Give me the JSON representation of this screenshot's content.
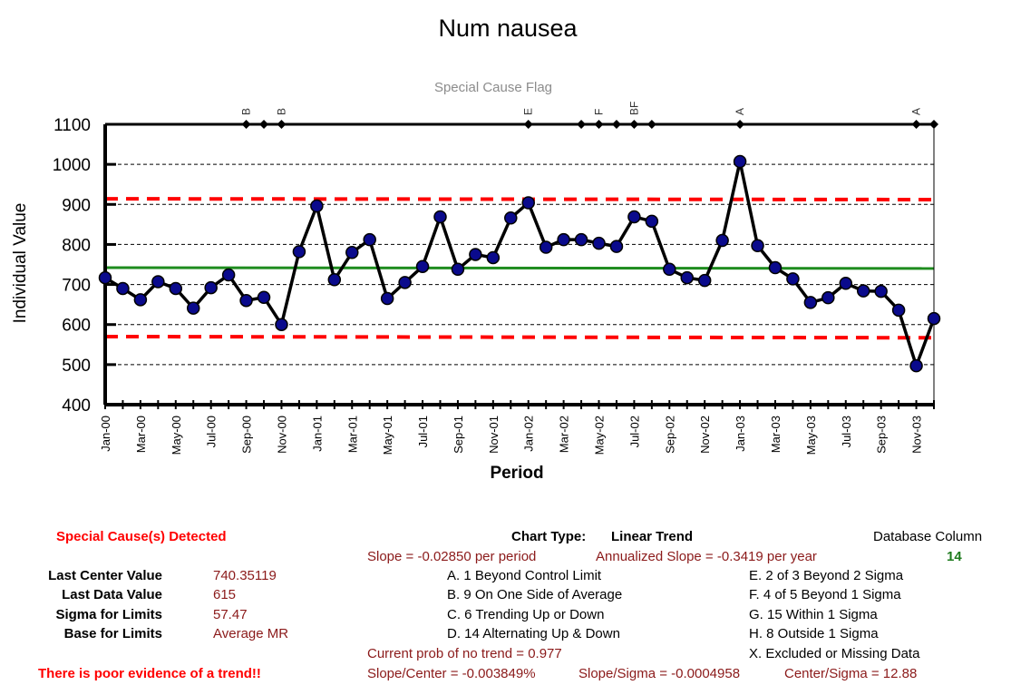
{
  "chart_data": {
    "type": "line",
    "title": "Num nausea",
    "flag_title": "Special Cause Flag",
    "xlabel": "Period",
    "ylabel": "Individual Value",
    "ylim": [
      400,
      1100
    ],
    "yticks": [
      400,
      500,
      600,
      700,
      800,
      900,
      1000,
      1100
    ],
    "grid": true,
    "x": [
      "Jan-00",
      "Feb-00",
      "Mar-00",
      "Apr-00",
      "May-00",
      "Jun-00",
      "Jul-00",
      "Aug-00",
      "Sep-00",
      "Oct-00",
      "Nov-00",
      "Dec-00",
      "Jan-01",
      "Feb-01",
      "Mar-01",
      "Apr-01",
      "May-01",
      "Jun-01",
      "Jul-01",
      "Aug-01",
      "Sep-01",
      "Oct-01",
      "Nov-01",
      "Dec-01",
      "Jan-02",
      "Feb-02",
      "Mar-02",
      "Apr-02",
      "May-02",
      "Jun-02",
      "Jul-02",
      "Aug-02",
      "Sep-02",
      "Oct-02",
      "Nov-02",
      "Dec-02",
      "Jan-03",
      "Feb-03",
      "Mar-03",
      "Apr-03",
      "May-03",
      "Jun-03",
      "Jul-03",
      "Aug-03",
      "Sep-03",
      "Oct-03",
      "Nov-03",
      "Dec-03"
    ],
    "tick_labels": [
      "Jan-00",
      "Mar-00",
      "May-00",
      "Jul-00",
      "Sep-00",
      "Nov-00",
      "Jan-01",
      "Mar-01",
      "May-01",
      "Jul-01",
      "Sep-01",
      "Nov-01",
      "Jan-02",
      "Mar-02",
      "May-02",
      "Jul-02",
      "Sep-02",
      "Nov-02",
      "Jan-03",
      "Mar-03",
      "May-03",
      "Jul-03",
      "Sep-03",
      "Nov-03"
    ],
    "series": [
      {
        "values": [
          717,
          690,
          662,
          707,
          690,
          641,
          692,
          724,
          660,
          668,
          600,
          782,
          896,
          712,
          780,
          812,
          665,
          705,
          745,
          869,
          738,
          775,
          767,
          866,
          904,
          793,
          812,
          812,
          803,
          795,
          869,
          858,
          738,
          717,
          710,
          810,
          1007,
          797,
          742,
          714,
          655,
          667,
          703,
          684,
          683,
          636,
          497,
          615
        ],
        "color": "#000000",
        "marker_color": "#0a0a8c"
      }
    ],
    "center_line": {
      "start": 742,
      "end": 740,
      "color": "#1e8c1e"
    },
    "ucl": {
      "start": 914,
      "end": 912,
      "color": "#ff0000"
    },
    "lcl": {
      "start": 570,
      "end": 567,
      "color": "#ff0000"
    },
    "flags": [
      {
        "label": "B",
        "index": 8
      },
      {
        "label": "B",
        "index": 10
      },
      {
        "label": "E",
        "index": 24
      },
      {
        "label": "F",
        "index": 28
      },
      {
        "label": "BF",
        "index": 30
      },
      {
        "label": "A",
        "index": 36
      },
      {
        "label": "A",
        "index": 46
      }
    ],
    "flag_markers": [
      8,
      9,
      10,
      24,
      27,
      28,
      29,
      30,
      31,
      36,
      46,
      47
    ]
  },
  "panel": {
    "special_cause": "Special Cause(s) Detected",
    "stats": [
      {
        "label": "Last Center Value",
        "value": "740.35119"
      },
      {
        "label": "Last Data Value",
        "value": "615"
      },
      {
        "label": "Sigma for Limits",
        "value": "57.47"
      },
      {
        "label": "Base for Limits",
        "value": "Average MR"
      }
    ],
    "trend_note": "There is poor evidence of a trend!!",
    "chart_type_label": "Chart Type:",
    "chart_type_value": "Linear Trend",
    "db_column_label": "Database Column",
    "db_column_value": "14",
    "slope": "Slope = -0.02850 per period",
    "annual_slope": "Annualized Slope = -0.3419 per year",
    "rules_left": [
      "A.  1 Beyond Control Limit",
      "B.  9 On One Side of Average",
      "C.  6 Trending Up or Down",
      "D.  14 Alternating  Up & Down"
    ],
    "rules_right": [
      "E.  2 of 3 Beyond 2 Sigma",
      "F.  4 of 5 Beyond 1 Sigma",
      "G.  15 Within 1 Sigma",
      "H.  8 Outside 1 Sigma",
      "X.  Excluded or Missing Data"
    ],
    "prob_no_trend": "Current prob of no trend = 0.977",
    "slope_center": "Slope/Center = -0.003849%",
    "slope_sigma": "Slope/Sigma = -0.0004958",
    "center_sigma": "Center/Sigma = 12.88"
  }
}
